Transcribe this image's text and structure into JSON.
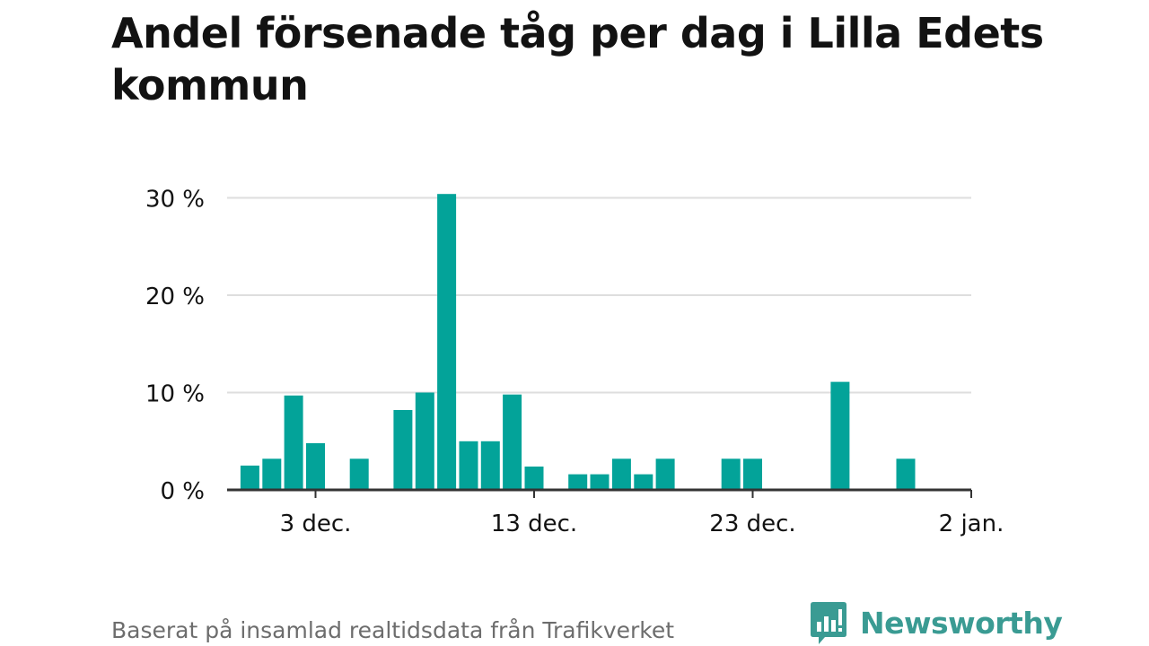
{
  "title": "Andel försenade tåg per dag i Lilla Edets kommun",
  "source": "Baserat på insamlad realtidsdata från Trafikverket",
  "brand": {
    "name": "Newsworthy",
    "logo_icon": "bar-chart-speech-bubble-icon",
    "color": "#3a9b93"
  },
  "colors": {
    "bar": "#03a399",
    "grid": "#dedede",
    "axis": "#333333",
    "text": "#121212"
  },
  "chart_data": {
    "type": "bar",
    "title": "Andel försenade tåg per dag i Lilla Edets kommun",
    "xlabel": "",
    "ylabel": "",
    "x_type": "date",
    "x_range": [
      "2022-11-28",
      "2023-01-02"
    ],
    "x_ticks": [
      {
        "date": "2022-12-03",
        "label": "3 dec."
      },
      {
        "date": "2022-12-13",
        "label": "13 dec."
      },
      {
        "date": "2022-12-23",
        "label": "23 dec."
      },
      {
        "date": "2023-01-02",
        "label": "2 jan."
      }
    ],
    "y_ticks": [
      {
        "value": 0,
        "label": "0 %"
      },
      {
        "value": 10,
        "label": "10 %"
      },
      {
        "value": 20,
        "label": "20 %"
      },
      {
        "value": 30,
        "label": "30 %"
      }
    ],
    "ylim": [
      0,
      30.5
    ],
    "unit": "%",
    "grid": true,
    "legend": "none",
    "x": [
      "2022-11-30",
      "2022-12-01",
      "2022-12-02",
      "2022-12-03",
      "2022-12-05",
      "2022-12-07",
      "2022-12-08",
      "2022-12-09",
      "2022-12-10",
      "2022-12-11",
      "2022-12-12",
      "2022-12-13",
      "2022-12-15",
      "2022-12-16",
      "2022-12-17",
      "2022-12-18",
      "2022-12-19",
      "2022-12-22",
      "2022-12-23",
      "2022-12-27",
      "2022-12-30"
    ],
    "values": [
      2.5,
      3.2,
      9.7,
      4.8,
      3.2,
      8.2,
      10.0,
      30.4,
      5.0,
      5.0,
      9.8,
      2.4,
      1.6,
      1.6,
      3.2,
      1.6,
      3.2,
      3.2,
      3.2,
      11.1,
      3.2
    ]
  }
}
